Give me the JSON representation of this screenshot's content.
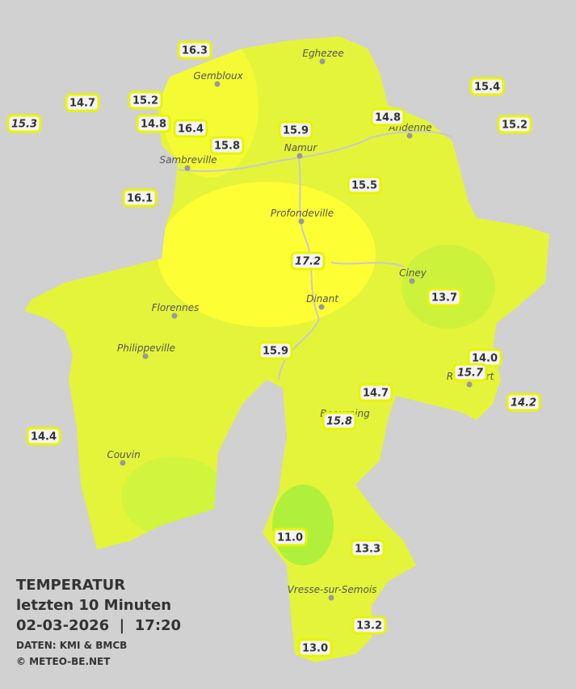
{
  "header": {
    "title": "TEMPERATUR",
    "subtitle": "letzten 10 Minuten",
    "datetime": "02-03-2026  |  17:20",
    "source": "DATEN: KMI & BMCB",
    "credit": "© METEO-BE.NET"
  },
  "cities": [
    {
      "label": "Eghezee"
    },
    {
      "label": "Gembloux"
    },
    {
      "label": "Andenne"
    },
    {
      "label": "Namur"
    },
    {
      "label": "Sambreville"
    },
    {
      "label": "Profondeville"
    },
    {
      "label": "Ciney"
    },
    {
      "label": "Dinant"
    },
    {
      "label": "Florennes"
    },
    {
      "label": "Philippeville"
    },
    {
      "label": "Rochefort"
    },
    {
      "label": "Beauraing"
    },
    {
      "label": "Couvin"
    },
    {
      "label": "Vresse-sur-Semois"
    }
  ],
  "stations": [
    {
      "label": "16.3"
    },
    {
      "label": "14.7"
    },
    {
      "label": "15.2"
    },
    {
      "label": "15.3",
      "italic": true
    },
    {
      "label": "14.8"
    },
    {
      "label": "16.4"
    },
    {
      "label": "15.9"
    },
    {
      "label": "15.8"
    },
    {
      "label": "14.8"
    },
    {
      "label": "15.4"
    },
    {
      "label": "15.2"
    },
    {
      "label": "16.1"
    },
    {
      "label": "15.5"
    },
    {
      "label": "17.2",
      "italic": true
    },
    {
      "label": "13.7"
    },
    {
      "label": "15.9"
    },
    {
      "label": "14.0"
    },
    {
      "label": "15.7",
      "italic": true
    },
    {
      "label": "14.2",
      "italic": true
    },
    {
      "label": "14.7"
    },
    {
      "label": "15.8",
      "italic": true
    },
    {
      "label": "14.4"
    },
    {
      "label": "11.0"
    },
    {
      "label": "13.3"
    },
    {
      "label": "13.2"
    },
    {
      "label": "13.0"
    }
  ]
}
